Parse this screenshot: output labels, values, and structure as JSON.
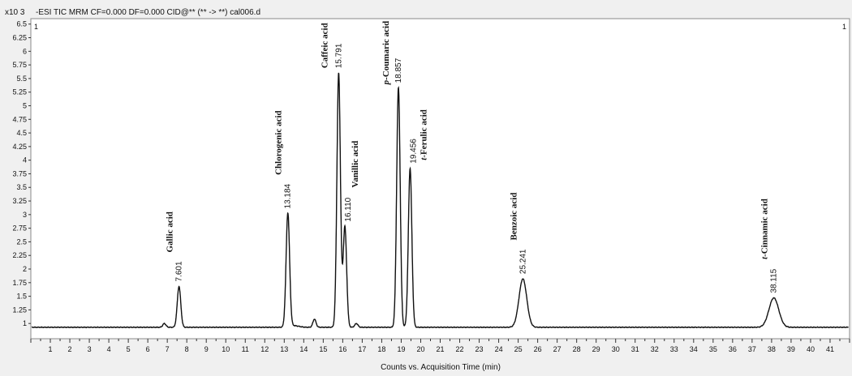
{
  "chart_data": {
    "type": "line",
    "title": "-ESI TIC MRM CF=0.000 DF=0.000 CID@** (** -> **) cal006.d",
    "y_multiplier": "x10 3",
    "corner_left": "1",
    "corner_right": "1",
    "xlabel": "Counts vs. Acquisition Time (min)",
    "ylabel": "",
    "xlim": [
      0,
      42
    ],
    "ylim": [
      0.72,
      6.6
    ],
    "grid": false,
    "x_ticks": [
      1,
      2,
      3,
      4,
      5,
      6,
      7,
      8,
      9,
      10,
      11,
      12,
      13,
      14,
      15,
      16,
      17,
      18,
      19,
      20,
      21,
      22,
      23,
      24,
      25,
      26,
      27,
      28,
      29,
      30,
      31,
      32,
      33,
      34,
      35,
      36,
      37,
      38,
      39,
      40,
      41
    ],
    "y_ticks": [
      "1",
      "1.25",
      "1.5",
      "1.75",
      "2",
      "2.25",
      "2.5",
      "2.75",
      "3",
      "3.25",
      "3.5",
      "3.75",
      "4",
      "4.25",
      "4.5",
      "4.75",
      "5",
      "5.25",
      "5.5",
      "5.75",
      "6",
      "6.25",
      "6.5"
    ],
    "baseline": 0.93,
    "peaks": [
      {
        "rt": 7.601,
        "rt_label": "7.601",
        "height": 1.68,
        "name": "Gallic acid",
        "italic_prefix": "",
        "rest": "Gallic acid"
      },
      {
        "rt": 13.184,
        "rt_label": "13.184",
        "height": 3.02,
        "name": "Chlorogenic acid",
        "italic_prefix": "",
        "rest": "Chlorogenic acid"
      },
      {
        "rt": 15.791,
        "rt_label": "15.791",
        "height": 5.6,
        "name": "Caffeic acid",
        "italic_prefix": "",
        "rest": "Caffeic acid"
      },
      {
        "rt": 16.11,
        "rt_label": "16.110",
        "height": 2.78,
        "name": "Vanillic acid",
        "italic_prefix": "",
        "rest": "Vanillic acid"
      },
      {
        "rt": 18.857,
        "rt_label": "18.857",
        "height": 5.33,
        "name": "p-Coumaric acid",
        "italic_prefix": "p",
        "rest": "-Coumaric acid"
      },
      {
        "rt": 19.456,
        "rt_label": "19.456",
        "height": 3.85,
        "name": "t-Ferulic acid",
        "italic_prefix": "t",
        "rest": "-Ferulic acid"
      },
      {
        "rt": 25.241,
        "rt_label": "25.241",
        "height": 1.82,
        "name": "Benzoic acid",
        "italic_prefix": "",
        "rest": "Benzoic acid"
      },
      {
        "rt": 38.115,
        "rt_label": "38.115",
        "height": 1.47,
        "name": "t-Cinnamic acid",
        "italic_prefix": "t",
        "rest": "-Cinnamic acid"
      }
    ],
    "minor_peaks": [
      {
        "rt": 6.85,
        "height": 1.0
      },
      {
        "rt": 14.55,
        "height": 1.08
      },
      {
        "rt": 16.7,
        "height": 1.0
      }
    ],
    "colors": {
      "line": "#111111",
      "axis": "#333333",
      "background": "#ffffff",
      "frame": "#f0f0f0"
    }
  }
}
